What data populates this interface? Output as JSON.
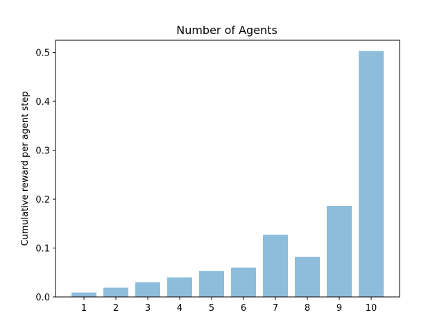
{
  "chart_data": {
    "type": "bar",
    "title": "Number of Agents",
    "xlabel": "",
    "ylabel": "Cumulative reward per agent step",
    "categories": [
      "1",
      "2",
      "3",
      "4",
      "5",
      "6",
      "7",
      "8",
      "9",
      "10"
    ],
    "values": [
      0.009,
      0.019,
      0.03,
      0.04,
      0.053,
      0.06,
      0.127,
      0.082,
      0.186,
      0.503
    ],
    "ylim": [
      0,
      0.525
    ],
    "yticks": [
      "0.0",
      "0.1",
      "0.2",
      "0.3",
      "0.4",
      "0.5"
    ],
    "grid": false,
    "bar_color": "#8ebcdb"
  }
}
